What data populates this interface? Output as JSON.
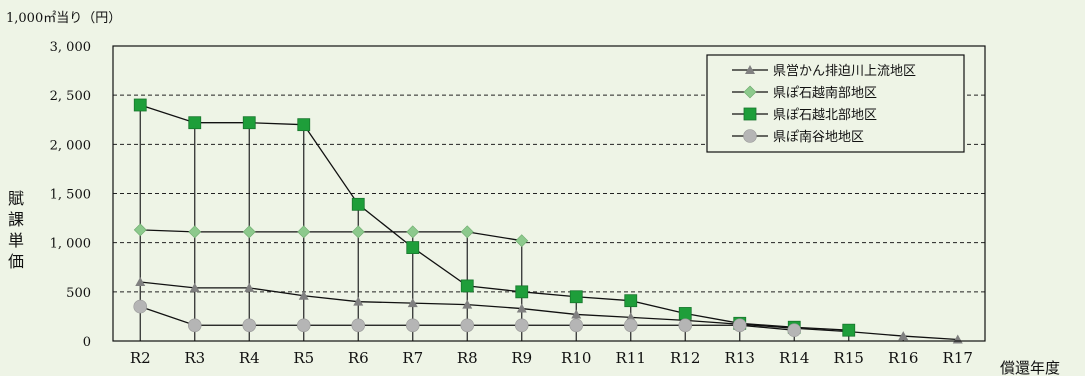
{
  "chart_data": {
    "type": "line",
    "unit_label": "1,000㎡当り（円）",
    "ylabel": "賦課単価",
    "xlabel": "償還年度",
    "ylim": [
      0,
      3000
    ],
    "yticks": [
      0,
      500,
      1000,
      1500,
      2000,
      2500,
      3000
    ],
    "ytick_labels": [
      "0",
      "500",
      "1, 000",
      "1, 500",
      "2, 000",
      "2, 500",
      "3, 000"
    ],
    "grid": "horizontal dashed",
    "legend_position": "top-right",
    "categories": [
      "R2",
      "R3",
      "R4",
      "R5",
      "R6",
      "R7",
      "R8",
      "R9",
      "R10",
      "R11",
      "R12",
      "R13",
      "R14",
      "R15",
      "R16",
      "R17"
    ],
    "series": [
      {
        "name": "県営かん排迫川上流地区",
        "marker": "triangle",
        "color": "#808080",
        "values": [
          600,
          540,
          540,
          460,
          400,
          385,
          370,
          330,
          270,
          240,
          210,
          170,
          130,
          95,
          50,
          15
        ]
      },
      {
        "name": "県ぽ石越南部地区",
        "marker": "diamond",
        "color": "#8cc98c",
        "values": [
          1130,
          1110,
          1110,
          1110,
          1110,
          1110,
          1110,
          1020,
          null,
          null,
          null,
          null,
          null,
          null,
          null,
          null
        ]
      },
      {
        "name": "県ぽ石越北部地区",
        "marker": "square",
        "color": "#1e9e3a",
        "values": [
          2400,
          2220,
          2220,
          2200,
          1390,
          950,
          560,
          500,
          450,
          410,
          280,
          180,
          140,
          110,
          null,
          null
        ]
      },
      {
        "name": "県ぽ南谷地地区",
        "marker": "circle",
        "color": "#b5b5b5",
        "values": [
          350,
          160,
          160,
          160,
          160,
          160,
          160,
          160,
          160,
          160,
          160,
          160,
          110,
          null,
          null,
          null
        ]
      }
    ]
  }
}
